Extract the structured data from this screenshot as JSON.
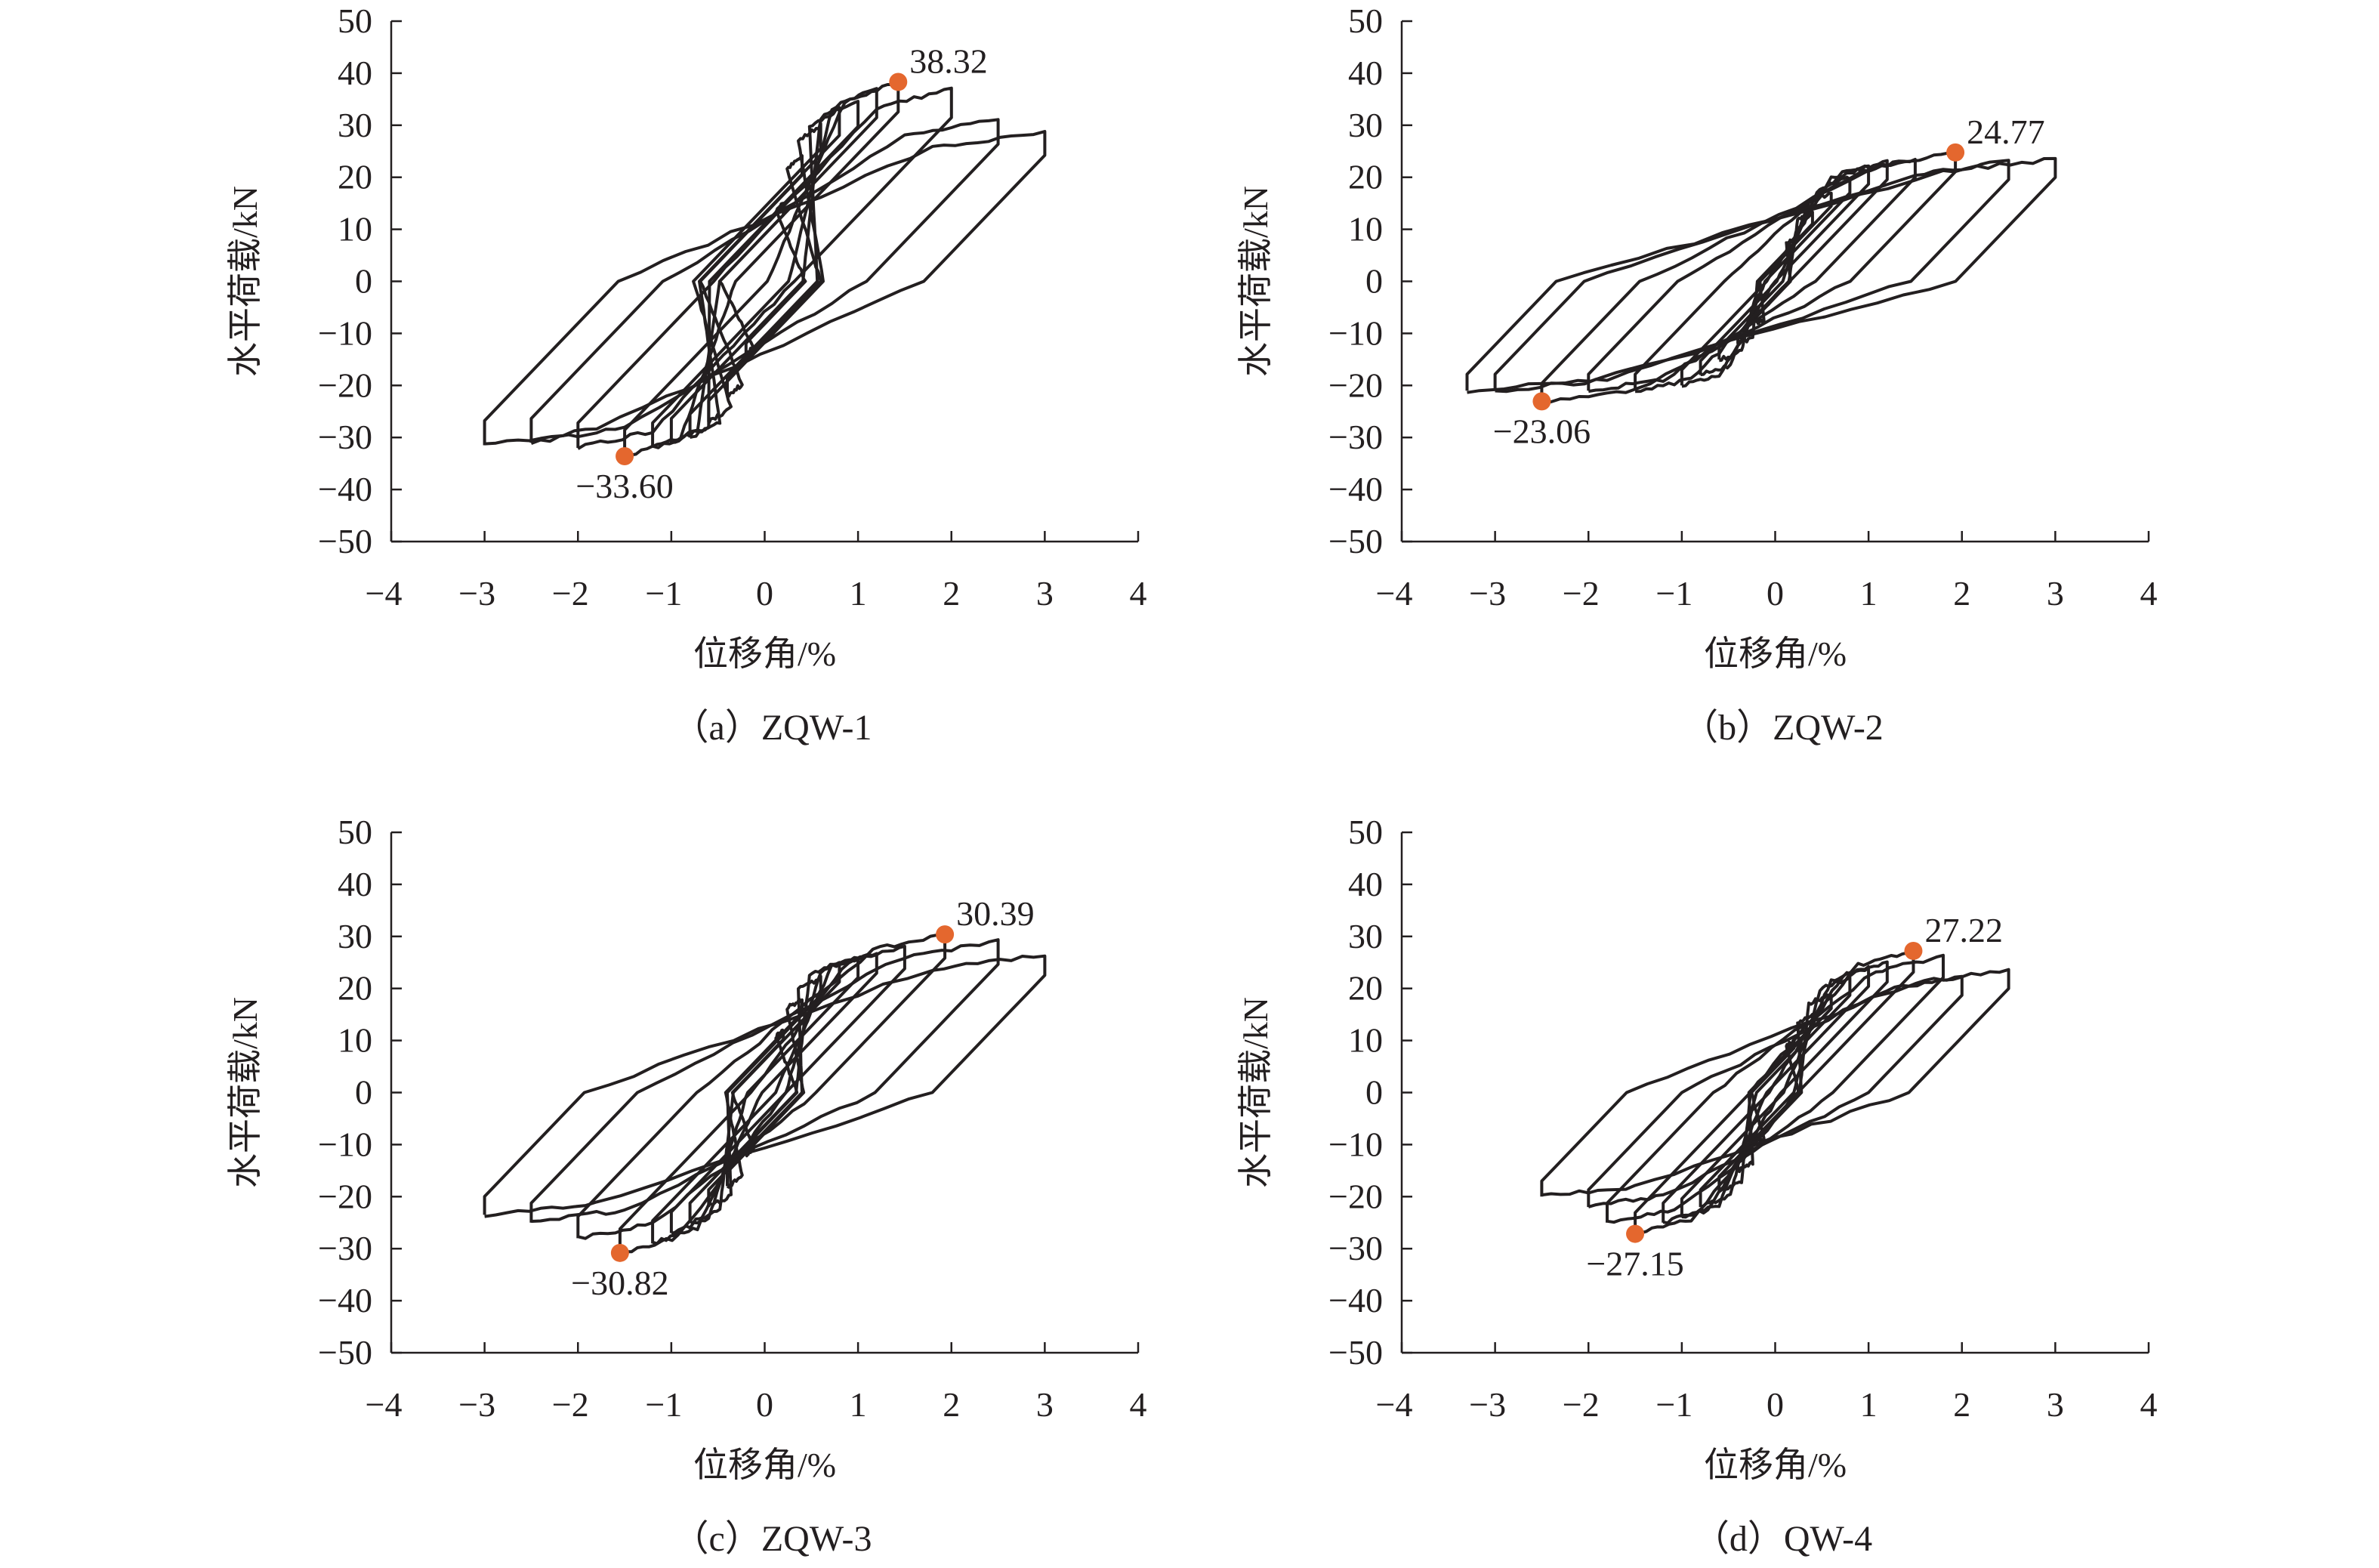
{
  "chart_data": [
    {
      "type": "line",
      "caption": "（a）ZQW-1",
      "xlabel": "位移角/%",
      "ylabel": "水平荷载/kN",
      "xlim": [
        -4,
        4
      ],
      "ylim": [
        -50,
        50
      ],
      "xticks": [
        "−4",
        "−3",
        "−2",
        "−1",
        "0",
        "1",
        "2",
        "3",
        "4"
      ],
      "yticks": [
        "50",
        "40",
        "30",
        "20",
        "10",
        "0",
        "−10",
        "−20",
        "−30",
        "−40",
        "−50"
      ],
      "grid": false,
      "loops": {
        "pos": [
          [
            0.2,
            15
          ],
          [
            0.4,
            24
          ],
          [
            0.6,
            30
          ],
          [
            0.8,
            33
          ],
          [
            1.0,
            35
          ],
          [
            1.2,
            37
          ],
          [
            1.43,
            38.32
          ],
          [
            2.0,
            37
          ],
          [
            2.5,
            31
          ],
          [
            3.0,
            28.5
          ]
        ],
        "neg": [
          [
            -0.2,
            -14
          ],
          [
            -0.4,
            -22
          ],
          [
            -0.6,
            -27
          ],
          [
            -0.8,
            -30
          ],
          [
            -1.0,
            -31
          ],
          [
            -1.2,
            -32
          ],
          [
            -1.5,
            -33.6
          ],
          [
            -2.0,
            -32
          ],
          [
            -2.5,
            -31
          ],
          [
            -3.0,
            -31.5
          ]
        ]
      },
      "peaks": [
        {
          "x": 1.43,
          "y": 38.32,
          "label": "38.32"
        },
        {
          "x": -1.5,
          "y": -33.6,
          "label": "−33.60"
        }
      ]
    },
    {
      "type": "line",
      "caption": "（b）ZQW-2",
      "xlabel": "位移角/%",
      "ylabel": "水平荷载/kN",
      "xlim": [
        -4,
        4
      ],
      "ylim": [
        -50,
        50
      ],
      "xticks": [
        "−4",
        "−3",
        "−2",
        "−1",
        "0",
        "1",
        "2",
        "3",
        "4"
      ],
      "yticks": [
        "50",
        "40",
        "30",
        "20",
        "10",
        "0",
        "−10",
        "−20",
        "−30",
        "−40",
        "−50"
      ],
      "grid": false,
      "loops": {
        "pos": [
          [
            0.2,
            8
          ],
          [
            0.4,
            13
          ],
          [
            0.6,
            17
          ],
          [
            0.8,
            20
          ],
          [
            1.0,
            22
          ],
          [
            1.2,
            23
          ],
          [
            1.5,
            23.5
          ],
          [
            1.93,
            24.77
          ],
          [
            2.5,
            23
          ],
          [
            3.0,
            23.5
          ]
        ],
        "neg": [
          [
            -0.2,
            -8
          ],
          [
            -0.4,
            -12
          ],
          [
            -0.6,
            -15
          ],
          [
            -0.8,
            -18
          ],
          [
            -1.0,
            -20
          ],
          [
            -1.5,
            -21
          ],
          [
            -2.0,
            -21
          ],
          [
            -2.5,
            -23.06
          ],
          [
            -3.0,
            -21
          ],
          [
            -3.3,
            -21
          ]
        ]
      },
      "peaks": [
        {
          "x": 1.93,
          "y": 24.77,
          "label": "24.77"
        },
        {
          "x": -2.5,
          "y": -23.06,
          "label": "−23.06"
        }
      ]
    },
    {
      "type": "line",
      "caption": "（c）ZQW-3",
      "xlabel": "位移角/%",
      "ylabel": "水平荷载/kN",
      "xlim": [
        -4,
        4
      ],
      "ylim": [
        -50,
        50
      ],
      "xticks": [
        "−4",
        "−3",
        "−2",
        "−1",
        "0",
        "1",
        "2",
        "3",
        "4"
      ],
      "yticks": [
        "50",
        "40",
        "30",
        "20",
        "10",
        "0",
        "−10",
        "−20",
        "−30",
        "−40",
        "−50"
      ],
      "grid": false,
      "loops": {
        "pos": [
          [
            0.2,
            12
          ],
          [
            0.4,
            18
          ],
          [
            0.6,
            22
          ],
          [
            0.8,
            25
          ],
          [
            1.0,
            26
          ],
          [
            1.2,
            27
          ],
          [
            1.5,
            28
          ],
          [
            1.93,
            30.39
          ],
          [
            2.5,
            29
          ],
          [
            3.0,
            26.5
          ]
        ],
        "neg": [
          [
            -0.2,
            -12
          ],
          [
            -0.4,
            -18
          ],
          [
            -0.6,
            -22
          ],
          [
            -0.8,
            -25
          ],
          [
            -1.0,
            -27
          ],
          [
            -1.2,
            -29
          ],
          [
            -1.55,
            -30.82
          ],
          [
            -2.0,
            -28
          ],
          [
            -2.5,
            -25
          ],
          [
            -3.0,
            -23.5
          ]
        ]
      },
      "peaks": [
        {
          "x": 1.93,
          "y": 30.39,
          "label": "30.39"
        },
        {
          "x": -1.55,
          "y": -30.82,
          "label": "−30.82"
        }
      ]
    },
    {
      "type": "line",
      "caption": "（d）QW-4",
      "xlabel": "位移角/%",
      "ylabel": "水平荷载/kN",
      "xlim": [
        -4,
        4
      ],
      "ylim": [
        -50,
        50
      ],
      "xticks": [
        "−4",
        "−3",
        "−2",
        "−1",
        "0",
        "1",
        "2",
        "3",
        "4"
      ],
      "yticks": [
        "50",
        "40",
        "30",
        "20",
        "10",
        "0",
        "−10",
        "−20",
        "−30",
        "−40",
        "−50"
      ],
      "grid": false,
      "loops": {
        "pos": [
          [
            0.2,
            10
          ],
          [
            0.4,
            15
          ],
          [
            0.6,
            19
          ],
          [
            0.8,
            22
          ],
          [
            1.0,
            24
          ],
          [
            1.2,
            25
          ],
          [
            1.48,
            27.22
          ],
          [
            1.8,
            26
          ],
          [
            2.0,
            22
          ],
          [
            2.5,
            23.5
          ]
        ],
        "neg": [
          [
            -0.2,
            -10
          ],
          [
            -0.4,
            -15
          ],
          [
            -0.6,
            -19
          ],
          [
            -0.8,
            -22
          ],
          [
            -1.0,
            -24
          ],
          [
            -1.2,
            -25
          ],
          [
            -1.5,
            -27.15
          ],
          [
            -1.8,
            -25
          ],
          [
            -2.0,
            -22
          ],
          [
            -2.5,
            -20
          ]
        ]
      },
      "peaks": [
        {
          "x": 1.48,
          "y": 27.22,
          "label": "27.22"
        },
        {
          "x": -1.5,
          "y": -27.15,
          "label": "−27.15"
        }
      ]
    }
  ],
  "colors": {
    "curve": "#231f20",
    "peak_marker": "#e4672e",
    "axis": "#231f20"
  }
}
